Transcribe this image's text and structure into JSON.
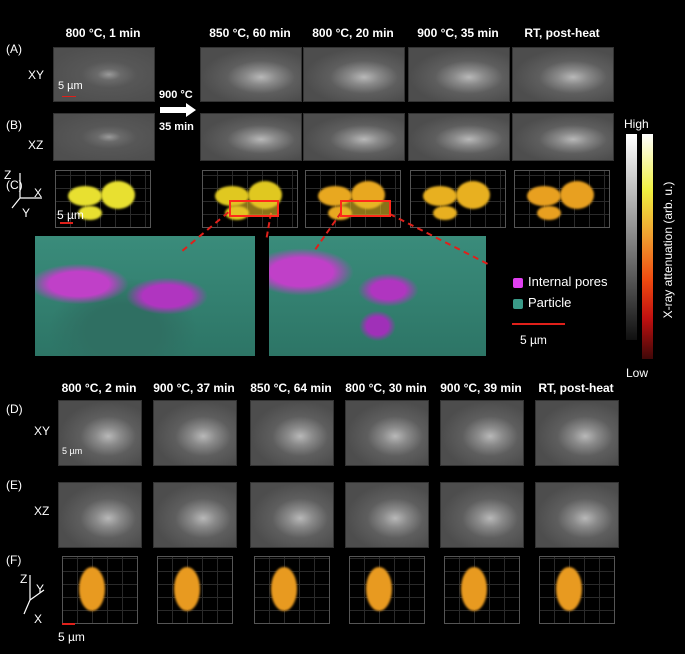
{
  "top_headers": [
    "800 °C, 1 min",
    "850 °C, 60 min",
    "800 °C, 20 min",
    "900 °C, 35 min",
    "RT, post-heat"
  ],
  "bottom_headers": [
    "800 °C, 2 min",
    "900 °C, 37 min",
    "850 °C, 64 min",
    "800 °C, 30 min",
    "900 °C, 39 min",
    "RT, post-heat"
  ],
  "panel_labels": {
    "a": "(A)",
    "b": "(B)",
    "c": "(C)",
    "d": "(D)",
    "e": "(E)",
    "f": "(F)"
  },
  "slice_labels": {
    "xy": "XY",
    "xz": "XZ"
  },
  "arrow": {
    "temp": "900 °C",
    "time": "35 min"
  },
  "scale_bar": "5 µm",
  "axes_top": {
    "z": "Z",
    "x": "X",
    "y": "Y"
  },
  "axes_bottom": {
    "z": "Z",
    "y": "Y",
    "x": "X"
  },
  "legend": {
    "pores": "Internal pores",
    "particle": "Particle",
    "pores_color": "#e040f0",
    "particle_color": "#3a9a88"
  },
  "colorbar": {
    "high": "High",
    "low": "Low",
    "label": "X-ray attenuation (arb. u.)"
  }
}
